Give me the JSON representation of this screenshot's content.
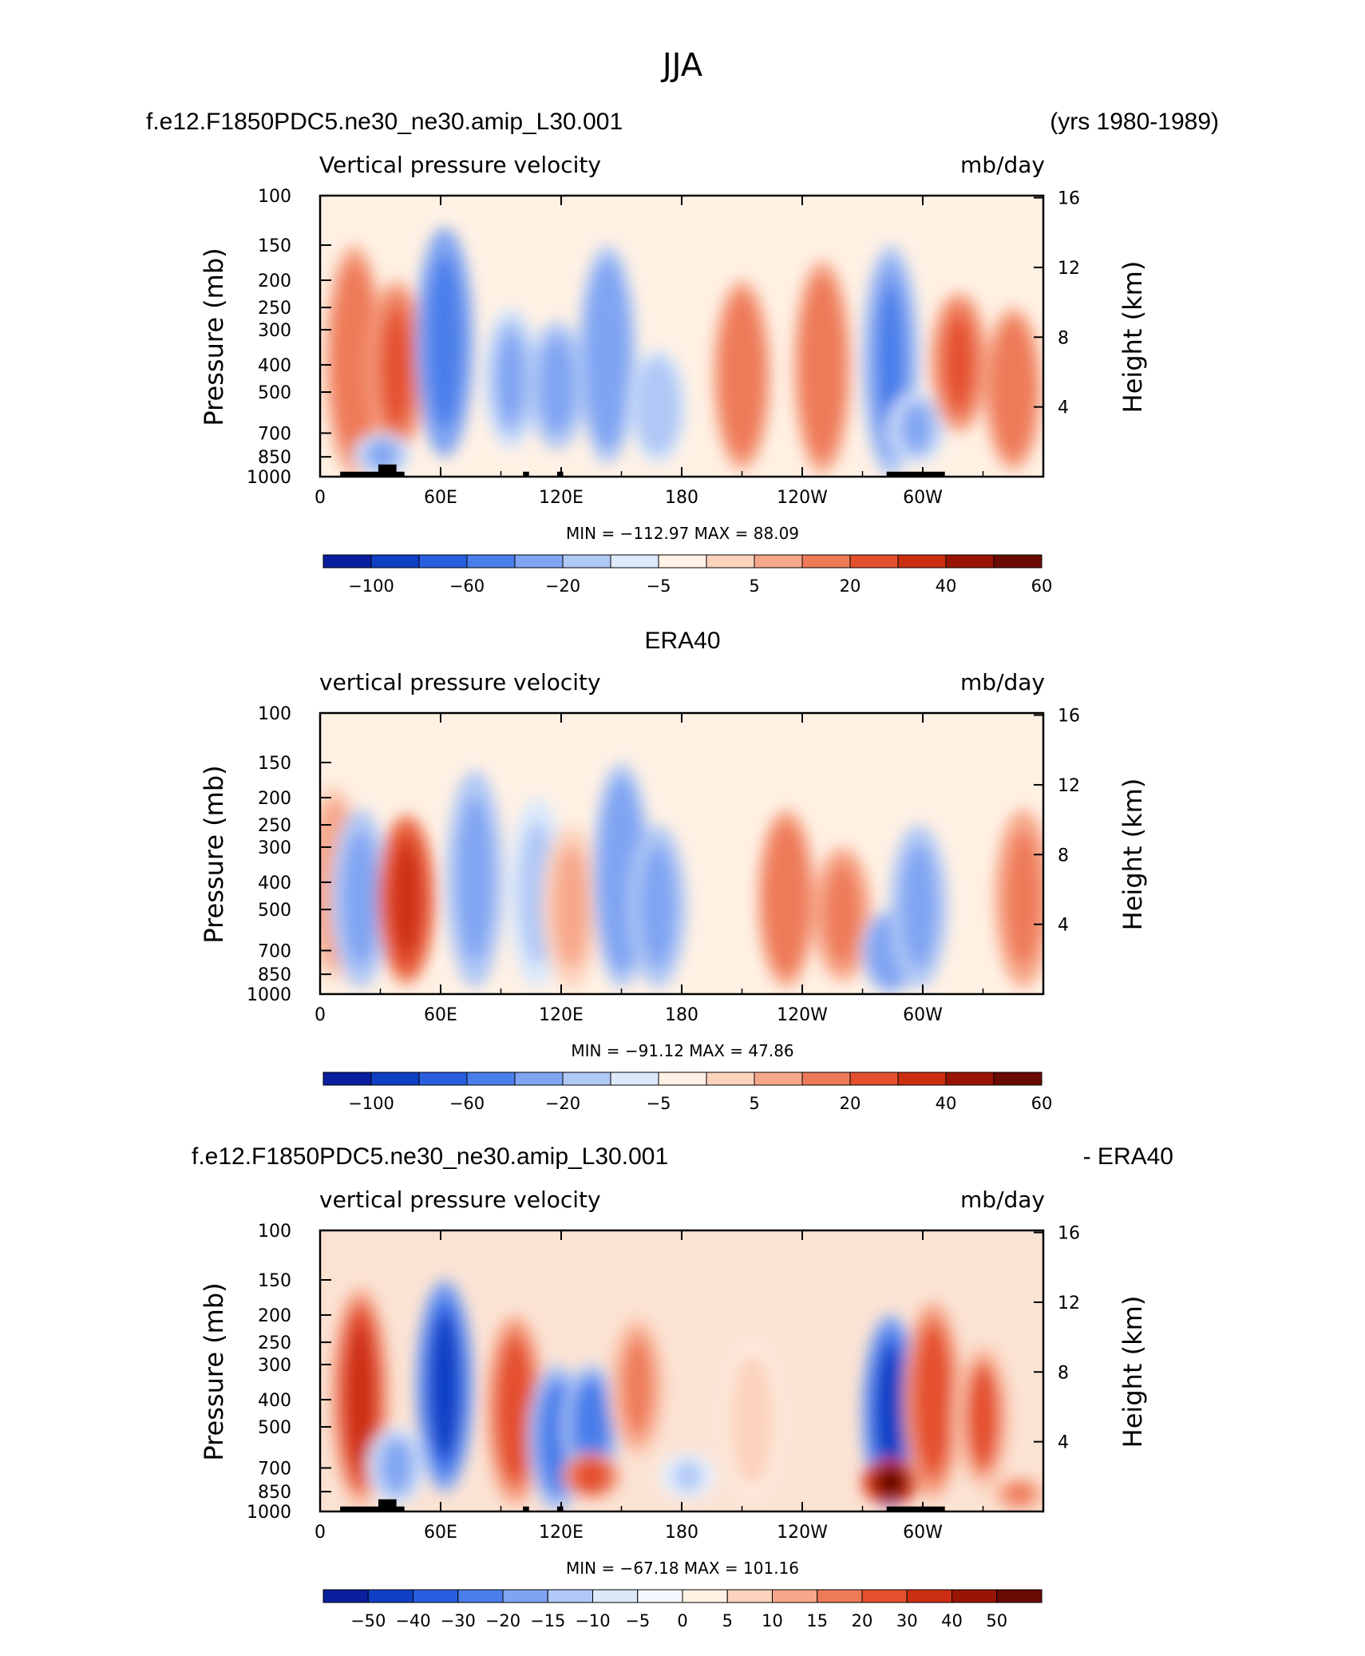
{
  "figure_title": "JJA",
  "colors": {
    "palette_11": [
      "#0a1f9e",
      "#0f3fc4",
      "#2a5ee0",
      "#4a7eea",
      "#7fa4f2",
      "#b0c8f6",
      "#dce9fb",
      "#fff1e4",
      "#fcd3bd",
      "#f7a78a",
      "#ee7a58",
      "#e4502d",
      "#cc2e12",
      "#9a1406",
      "#6a0b03"
    ],
    "palette_diff": [
      "#0a1f9e",
      "#0f3fc4",
      "#2a5ee0",
      "#4a7eea",
      "#7fa4f2",
      "#b0c8f6",
      "#dce9fb",
      "#f2f6fe",
      "#fff1e4",
      "#fcd3bd",
      "#f7a78a",
      "#ee7a58",
      "#e4502d",
      "#cc2e12",
      "#9a1406",
      "#6a0b03"
    ],
    "topography": "#000000"
  },
  "chart_data": [
    {
      "type": "heatmap",
      "header_left": "f.e12.F1850PDC5.ne30_ne30.amip_L30.001",
      "header_right": "(yrs 1980-1989)",
      "subtitle_left": "Vertical pressure velocity",
      "subtitle_right": "mb/day",
      "ylabel": "Pressure (mb)",
      "ylabel2": "Height (km)",
      "x_ticks": [
        "0",
        "60E",
        "120E",
        "180",
        "120W",
        "60W"
      ],
      "y_ticks": [
        "100",
        "150",
        "200",
        "250",
        "300",
        "400",
        "500",
        "700",
        "850",
        "1000"
      ],
      "y2_ticks": [
        "16",
        "12",
        "8",
        "4"
      ],
      "x_range_deg": [
        0,
        360
      ],
      "y_range_mb": [
        1000,
        100
      ],
      "min_max_text": "MIN = −112.97   MAX =   88.09",
      "colorbar_labels": [
        "−100",
        "−60",
        "−20",
        "−5",
        "5",
        "20",
        "40",
        "60"
      ],
      "topography": true,
      "features": [
        {
          "lon": 17,
          "p_top": 150,
          "p_bot": 1000,
          "v": 20
        },
        {
          "lon": 38,
          "p_top": 200,
          "p_bot": 850,
          "v": 25
        },
        {
          "lon": 31,
          "p_top": 700,
          "p_bot": 1000,
          "v": -25
        },
        {
          "lon": 62,
          "p_top": 130,
          "p_bot": 850,
          "v": -70
        },
        {
          "lon": 95,
          "p_top": 250,
          "p_bot": 800,
          "v": -25
        },
        {
          "lon": 118,
          "p_top": 280,
          "p_bot": 800,
          "v": -30
        },
        {
          "lon": 143,
          "p_top": 150,
          "p_bot": 900,
          "v": -45
        },
        {
          "lon": 168,
          "p_top": 350,
          "p_bot": 900,
          "v": -20
        },
        {
          "lon": 210,
          "p_top": 200,
          "p_bot": 950,
          "v": 20
        },
        {
          "lon": 250,
          "p_top": 170,
          "p_bot": 980,
          "v": 22
        },
        {
          "lon": 284,
          "p_top": 150,
          "p_bot": 1000,
          "v": -55
        },
        {
          "lon": 297,
          "p_top": 500,
          "p_bot": 900,
          "v": -25
        },
        {
          "lon": 318,
          "p_top": 220,
          "p_bot": 700,
          "v": 25
        },
        {
          "lon": 345,
          "p_top": 250,
          "p_bot": 950,
          "v": 22
        }
      ]
    },
    {
      "type": "heatmap",
      "header_left": "ERA40",
      "header_right": "",
      "subtitle_left": "vertical pressure velocity",
      "subtitle_right": "mb/day",
      "ylabel": "Pressure (mb)",
      "ylabel2": "Height (km)",
      "x_ticks": [
        "0",
        "60E",
        "120E",
        "180",
        "120W",
        "60W"
      ],
      "y_ticks": [
        "100",
        "150",
        "200",
        "250",
        "300",
        "400",
        "500",
        "700",
        "850",
        "1000"
      ],
      "y2_ticks": [
        "16",
        "12",
        "8",
        "4"
      ],
      "x_range_deg": [
        0,
        360
      ],
      "y_range_mb": [
        1000,
        100
      ],
      "min_max_text": "MIN = −91.12   MAX =   47.86",
      "colorbar_labels": [
        "−100",
        "−60",
        "−20",
        "−5",
        "5",
        "20",
        "40",
        "60"
      ],
      "topography": false,
      "features": [
        {
          "lon": 7,
          "p_top": 180,
          "p_bot": 900,
          "v": 10
        },
        {
          "lon": 20,
          "p_top": 220,
          "p_bot": 950,
          "v": -35
        },
        {
          "lon": 43,
          "p_top": 230,
          "p_bot": 920,
          "v": 40
        },
        {
          "lon": 77,
          "p_top": 160,
          "p_bot": 950,
          "v": -30
        },
        {
          "lon": 108,
          "p_top": 200,
          "p_bot": 950,
          "v": -15
        },
        {
          "lon": 125,
          "p_top": 250,
          "p_bot": 950,
          "v": 8
        },
        {
          "lon": 150,
          "p_top": 150,
          "p_bot": 950,
          "v": -45
        },
        {
          "lon": 168,
          "p_top": 250,
          "p_bot": 950,
          "v": -30
        },
        {
          "lon": 232,
          "p_top": 220,
          "p_bot": 950,
          "v": 22
        },
        {
          "lon": 260,
          "p_top": 300,
          "p_bot": 900,
          "v": 18
        },
        {
          "lon": 284,
          "p_top": 500,
          "p_bot": 1000,
          "v": -45
        },
        {
          "lon": 298,
          "p_top": 250,
          "p_bot": 950,
          "v": -35
        },
        {
          "lon": 350,
          "p_top": 220,
          "p_bot": 950,
          "v": 18
        }
      ]
    },
    {
      "type": "heatmap",
      "header_left": "f.e12.F1850PDC5.ne30_ne30.amip_L30.001",
      "header_right": "- ERA40",
      "subtitle_left": "vertical pressure velocity",
      "subtitle_right": "mb/day",
      "ylabel": "Pressure (mb)",
      "ylabel2": "Height (km)",
      "x_ticks": [
        "0",
        "60E",
        "120E",
        "180",
        "120W",
        "60W"
      ],
      "y_ticks": [
        "100",
        "150",
        "200",
        "250",
        "300",
        "400",
        "500",
        "700",
        "850",
        "1000"
      ],
      "y2_ticks": [
        "16",
        "12",
        "8",
        "4"
      ],
      "x_range_deg": [
        0,
        360
      ],
      "y_range_mb": [
        1000,
        100
      ],
      "min_max_text": "MIN = −67.18   MAX = 101.16",
      "colorbar_labels": [
        "−50",
        "−40",
        "−30",
        "−20",
        "−15",
        "−10",
        "−5",
        "0",
        "5",
        "10",
        "15",
        "20",
        "30",
        "40",
        "50"
      ],
      "topography": true,
      "features": [
        {
          "lon": 20,
          "p_top": 160,
          "p_bot": 950,
          "v": 40
        },
        {
          "lon": 38,
          "p_top": 500,
          "p_bot": 950,
          "v": -20
        },
        {
          "lon": 62,
          "p_top": 150,
          "p_bot": 850,
          "v": -55
        },
        {
          "lon": 97,
          "p_top": 200,
          "p_bot": 950,
          "v": 35
        },
        {
          "lon": 118,
          "p_top": 300,
          "p_bot": 1000,
          "v": -30
        },
        {
          "lon": 135,
          "p_top": 300,
          "p_bot": 800,
          "v": -35
        },
        {
          "lon": 135,
          "p_top": 620,
          "p_bot": 900,
          "v": 30
        },
        {
          "lon": 158,
          "p_top": 200,
          "p_bot": 650,
          "v": 20
        },
        {
          "lon": 183,
          "p_top": 620,
          "p_bot": 900,
          "v": -12
        },
        {
          "lon": 215,
          "p_top": 250,
          "p_bot": 900,
          "v": 10
        },
        {
          "lon": 284,
          "p_top": 200,
          "p_bot": 1000,
          "v": -55
        },
        {
          "lon": 284,
          "p_top": 650,
          "p_bot": 950,
          "v": 70
        },
        {
          "lon": 305,
          "p_top": 180,
          "p_bot": 900,
          "v": 35
        },
        {
          "lon": 330,
          "p_top": 250,
          "p_bot": 850,
          "v": 25
        },
        {
          "lon": 348,
          "p_top": 750,
          "p_bot": 1000,
          "v": 20
        }
      ]
    }
  ]
}
